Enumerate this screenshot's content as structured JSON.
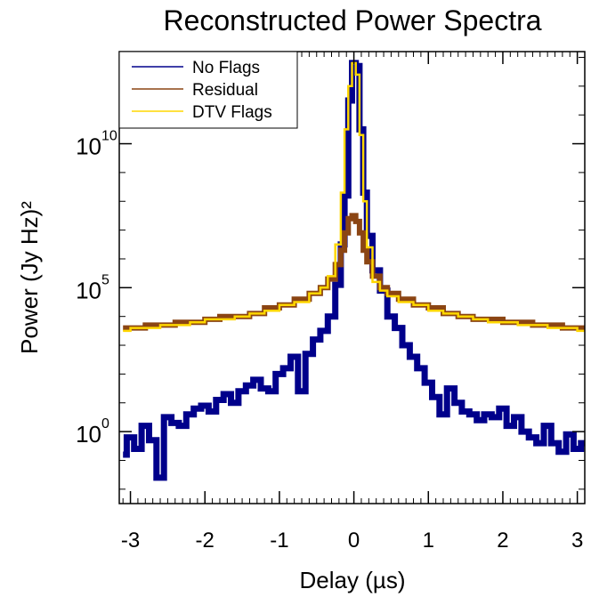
{
  "chart_data": {
    "type": "line",
    "title": "Reconstructed Power Spectra",
    "xlabel": "Delay (µs)",
    "ylabel": "Power (Jy Hz)²",
    "xlim": [
      -3.15,
      3.1
    ],
    "ylim_log10": [
      -2.5,
      13.2
    ],
    "yscale": "log",
    "x_ticks": [
      -3,
      -2,
      -1,
      0,
      1,
      2,
      3
    ],
    "x_tick_labels": [
      "-3",
      "-2",
      "-1",
      "0",
      "1",
      "2",
      "3"
    ],
    "y_ticks_log10": [
      0,
      5,
      10
    ],
    "y_tick_labels": [
      "10",
      "10",
      "10"
    ],
    "y_tick_exponents": [
      "0",
      "5",
      "10"
    ],
    "legend": {
      "position": "top-left",
      "entries": [
        {
          "label": "No Flags",
          "color": "#00008b"
        },
        {
          "label": "Residual",
          "color": "#8b4513"
        },
        {
          "label": "DTV Flags",
          "color": "#ffd700"
        }
      ]
    },
    "series": [
      {
        "name": "No Flags",
        "color": "#00008b",
        "style": "steps",
        "x": [
          -3.1,
          -3.0,
          -2.9,
          -2.8,
          -2.7,
          -2.6,
          -2.5,
          -2.4,
          -2.3,
          -2.2,
          -2.1,
          -2.0,
          -1.9,
          -1.8,
          -1.7,
          -1.6,
          -1.5,
          -1.4,
          -1.3,
          -1.2,
          -1.1,
          -1.0,
          -0.9,
          -0.8,
          -0.7,
          -0.6,
          -0.5,
          -0.4,
          -0.3,
          -0.2,
          -0.15,
          -0.1,
          -0.05,
          0.0,
          0.05,
          0.1,
          0.15,
          0.2,
          0.3,
          0.4,
          0.5,
          0.6,
          0.7,
          0.8,
          0.9,
          1.0,
          1.1,
          1.2,
          1.3,
          1.4,
          1.5,
          1.6,
          1.7,
          1.8,
          1.9,
          2.0,
          2.1,
          2.2,
          2.3,
          2.4,
          2.5,
          2.6,
          2.7,
          2.8,
          2.9,
          3.0,
          3.1
        ],
        "log10_y": [
          -0.8,
          -0.2,
          -0.6,
          0.2,
          -0.3,
          -1.6,
          0.5,
          0.3,
          0.2,
          0.6,
          0.8,
          0.9,
          0.7,
          1.1,
          1.3,
          1.0,
          1.4,
          1.6,
          1.8,
          1.5,
          1.4,
          2.0,
          2.2,
          2.6,
          1.4,
          2.7,
          3.2,
          3.5,
          4.0,
          5.1,
          6.5,
          8.2,
          11.5,
          12.8,
          12.7,
          10.5,
          8.3,
          6.8,
          5.6,
          4.9,
          4.0,
          3.6,
          3.0,
          2.6,
          2.2,
          1.7,
          1.2,
          0.6,
          1.5,
          1.0,
          0.7,
          0.6,
          0.4,
          0.6,
          0.5,
          0.8,
          0.2,
          0.5,
          0.0,
          -0.2,
          -0.4,
          0.2,
          -0.4,
          -0.7,
          -0.1,
          -0.6,
          -0.4
        ]
      },
      {
        "name": "Residual",
        "color": "#8b4513",
        "style": "steps",
        "x": [
          -3.1,
          -2.9,
          -2.7,
          -2.5,
          -2.3,
          -2.1,
          -1.9,
          -1.7,
          -1.5,
          -1.3,
          -1.1,
          -0.9,
          -0.7,
          -0.5,
          -0.4,
          -0.3,
          -0.2,
          -0.15,
          -0.1,
          -0.05,
          0.0,
          0.05,
          0.1,
          0.15,
          0.2,
          0.3,
          0.4,
          0.5,
          0.7,
          0.9,
          1.1,
          1.3,
          1.5,
          1.7,
          1.9,
          2.1,
          2.3,
          2.5,
          2.7,
          2.9,
          3.1
        ],
        "log10_y": [
          3.6,
          3.6,
          3.7,
          3.7,
          3.8,
          3.8,
          3.9,
          4.0,
          4.0,
          4.1,
          4.3,
          4.4,
          4.6,
          4.8,
          5.0,
          5.3,
          5.8,
          6.3,
          6.9,
          7.4,
          7.5,
          7.3,
          6.9,
          6.3,
          5.9,
          5.4,
          5.0,
          4.8,
          4.6,
          4.4,
          4.3,
          4.1,
          4.0,
          3.9,
          3.9,
          3.8,
          3.8,
          3.7,
          3.7,
          3.6,
          3.6
        ]
      },
      {
        "name": "DTV Flags",
        "color": "#ffd700",
        "style": "steps",
        "x": [
          -3.1,
          -2.9,
          -2.7,
          -2.5,
          -2.3,
          -2.1,
          -1.9,
          -1.7,
          -1.5,
          -1.3,
          -1.1,
          -0.9,
          -0.7,
          -0.5,
          -0.4,
          -0.3,
          -0.2,
          -0.15,
          -0.1,
          -0.05,
          0.0,
          0.05,
          0.1,
          0.15,
          0.2,
          0.3,
          0.4,
          0.5,
          0.7,
          0.9,
          1.1,
          1.3,
          1.5,
          1.7,
          1.9,
          2.1,
          2.3,
          2.5,
          2.7,
          2.9,
          3.1
        ],
        "log10_y": [
          3.5,
          3.6,
          3.6,
          3.7,
          3.7,
          3.8,
          3.9,
          3.9,
          4.0,
          4.1,
          4.2,
          4.4,
          4.5,
          4.8,
          5.0,
          5.4,
          6.5,
          8.3,
          10.5,
          12.0,
          12.8,
          12.4,
          10.3,
          8.0,
          6.4,
          5.2,
          4.9,
          4.7,
          4.5,
          4.4,
          4.2,
          4.1,
          4.0,
          3.9,
          3.8,
          3.8,
          3.7,
          3.7,
          3.6,
          3.6,
          3.5
        ]
      }
    ]
  }
}
